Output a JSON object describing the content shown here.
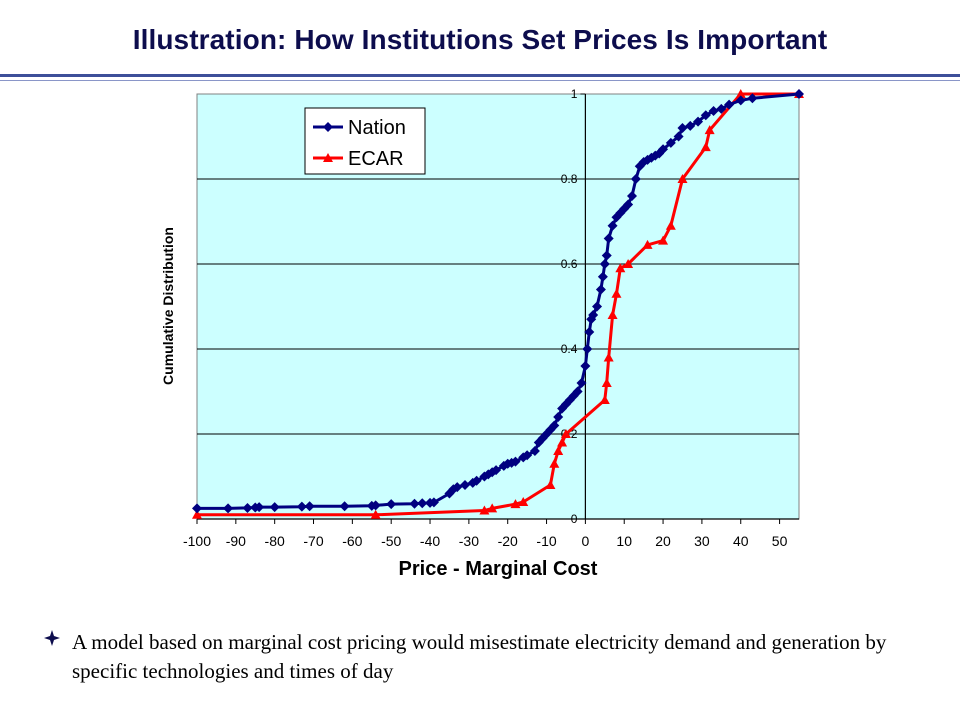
{
  "slide": {
    "title": "Illustration: How Institutions Set Prices Is Important",
    "bullet_text": "A model based on marginal cost pricing would misestimate electricity demand and generation by specific technologies and times of day"
  },
  "colors": {
    "plot_bg": "#ccffff",
    "nation": "#000080",
    "ecar": "#ff0000",
    "title": "#0d0d4d"
  },
  "chart_data": {
    "type": "line",
    "xlabel": "Price - Marginal Cost",
    "ylabel": "Cumulative Distribution",
    "xlim": [
      -100,
      55
    ],
    "ylim": [
      0,
      1
    ],
    "x_ticks": [
      "-100",
      "-90",
      "-80",
      "-70",
      "-60",
      "-50",
      "-40",
      "-30",
      "-20",
      "-10",
      "0",
      "10",
      "20",
      "30",
      "40",
      "50"
    ],
    "y_ticks": [
      "0",
      "0.2",
      "0.4",
      "0.6",
      "0.8",
      "1"
    ],
    "grid": "horizontal",
    "legend": "top-left",
    "series": [
      {
        "name": "Nation",
        "marker": "diamond",
        "x": [
          -100,
          -92,
          -87,
          -85,
          -84,
          -80,
          -73,
          -71,
          -62,
          -55,
          -54,
          -50,
          -44,
          -42,
          -40,
          -39,
          -35,
          -34,
          -33,
          -31,
          -29,
          -28,
          -26,
          -25,
          -24,
          -23,
          -21,
          -20,
          -19,
          -18,
          -16,
          -15,
          -13,
          -12,
          -11,
          -10,
          -9,
          -8,
          -7,
          -6,
          -5,
          -4,
          -3,
          -2,
          -1,
          0,
          0.5,
          1,
          1.5,
          2,
          3,
          4,
          4.5,
          5,
          5.5,
          6,
          7,
          8,
          9,
          10,
          11,
          12,
          13,
          14,
          15,
          16,
          17,
          18,
          19,
          20,
          22,
          24,
          25,
          27,
          29,
          31,
          33,
          35,
          37,
          40,
          43,
          55
        ],
        "y": [
          0.025,
          0.025,
          0.026,
          0.027,
          0.028,
          0.028,
          0.029,
          0.03,
          0.03,
          0.031,
          0.032,
          0.035,
          0.036,
          0.037,
          0.038,
          0.039,
          0.06,
          0.07,
          0.075,
          0.08,
          0.085,
          0.09,
          0.1,
          0.105,
          0.11,
          0.115,
          0.125,
          0.13,
          0.132,
          0.135,
          0.145,
          0.15,
          0.16,
          0.18,
          0.19,
          0.2,
          0.21,
          0.22,
          0.24,
          0.26,
          0.27,
          0.28,
          0.29,
          0.3,
          0.32,
          0.36,
          0.4,
          0.44,
          0.47,
          0.48,
          0.5,
          0.54,
          0.57,
          0.6,
          0.62,
          0.66,
          0.69,
          0.71,
          0.72,
          0.73,
          0.74,
          0.76,
          0.8,
          0.83,
          0.84,
          0.845,
          0.85,
          0.855,
          0.86,
          0.87,
          0.885,
          0.9,
          0.92,
          0.925,
          0.935,
          0.95,
          0.96,
          0.965,
          0.975,
          0.985,
          0.99,
          1.0
        ]
      },
      {
        "name": "ECAR",
        "marker": "triangle",
        "x": [
          -100,
          -54,
          -26,
          -24,
          -18,
          -16,
          -9,
          -8,
          -7,
          -6,
          -5,
          5,
          5.5,
          6,
          7,
          8,
          9,
          11,
          16,
          20,
          22,
          25,
          31,
          32,
          40,
          55
        ],
        "y": [
          0.01,
          0.01,
          0.02,
          0.025,
          0.035,
          0.04,
          0.08,
          0.13,
          0.16,
          0.18,
          0.2,
          0.28,
          0.32,
          0.38,
          0.48,
          0.53,
          0.59,
          0.6,
          0.645,
          0.655,
          0.69,
          0.8,
          0.875,
          0.915,
          1.0,
          1.0
        ]
      }
    ]
  }
}
